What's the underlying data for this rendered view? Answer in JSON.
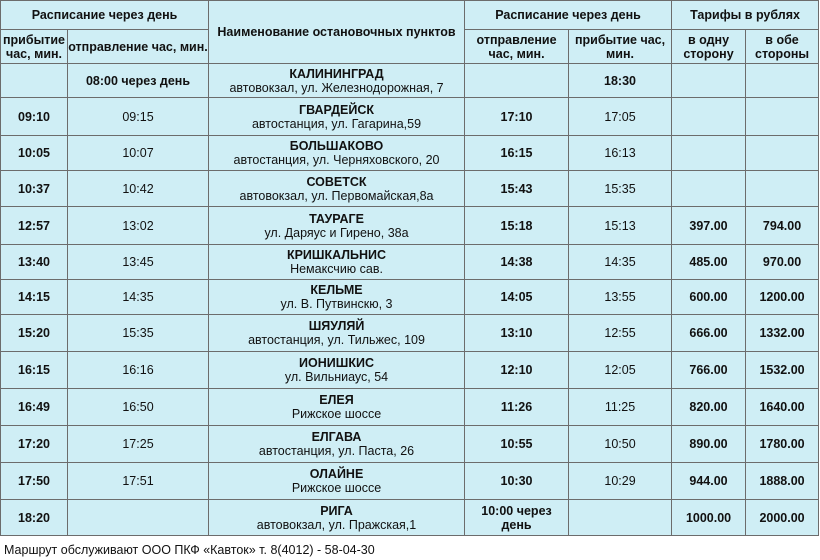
{
  "header": {
    "left_group": "Расписание через день",
    "left_arr": "прибытие час, мин.",
    "left_dep": "отправление час, мин.",
    "stops": "Наименование остановочных пунктов",
    "right_group": "Расписание через день",
    "right_dep": "отправление час, мин.",
    "right_arr": "прибытие час, мин.",
    "tariffs": "Тарифы в рублях",
    "one_way": "в одну сторону",
    "both_ways": "в обе стороны"
  },
  "rows": [
    {
      "l_arr": "",
      "l_dep": "08:00 через день",
      "name": "КАЛИНИНГРАД",
      "addr": "автовокзал, ул. Железнодорожная, 7",
      "r_dep": "",
      "r_arr": "18:30",
      "one": "",
      "both": ""
    },
    {
      "l_arr": "09:10",
      "l_dep": "09:15",
      "name": "ГВАРДЕЙСК",
      "addr": "автостанция, ул. Гагарина,59",
      "r_dep": "17:10",
      "r_arr": "17:05",
      "one": "",
      "both": ""
    },
    {
      "l_arr": "10:05",
      "l_dep": "10:07",
      "name": "БОЛЬШАКОВО",
      "addr": "автостанция, ул. Черняховского, 20",
      "r_dep": "16:15",
      "r_arr": "16:13",
      "one": "",
      "both": ""
    },
    {
      "l_arr": "10:37",
      "l_dep": "10:42",
      "name": "СОВЕТСК",
      "addr": "автовокзал, ул. Первомайская,8а",
      "r_dep": "15:43",
      "r_arr": "15:35",
      "one": "",
      "both": ""
    },
    {
      "l_arr": "12:57",
      "l_dep": "13:02",
      "name": "ТАУРАГЕ",
      "addr": "ул. Даряус и Гирено, 38а",
      "r_dep": "15:18",
      "r_arr": "15:13",
      "one": "397.00",
      "both": "794.00"
    },
    {
      "l_arr": "13:40",
      "l_dep": "13:45",
      "name": "КРИШКАЛЬНИС",
      "addr": "Немаксчию сав.",
      "r_dep": "14:38",
      "r_arr": "14:35",
      "one": "485.00",
      "both": "970.00"
    },
    {
      "l_arr": "14:15",
      "l_dep": "14:35",
      "name": "КЕЛЬМЕ",
      "addr": "ул. В. Путвинскю, 3",
      "r_dep": "14:05",
      "r_arr": "13:55",
      "one": "600.00",
      "both": "1200.00"
    },
    {
      "l_arr": "15:20",
      "l_dep": "15:35",
      "name": "ШЯУЛЯЙ",
      "addr": "автостанция, ул. Тильжес, 109",
      "r_dep": "13:10",
      "r_arr": "12:55",
      "one": "666.00",
      "both": "1332.00"
    },
    {
      "l_arr": "16:15",
      "l_dep": "16:16",
      "name": "ИОНИШКИС",
      "addr": "ул. Вильниаус, 54",
      "r_dep": "12:10",
      "r_arr": "12:05",
      "one": "766.00",
      "both": "1532.00"
    },
    {
      "l_arr": "16:49",
      "l_dep": "16:50",
      "name": "ЕЛЕЯ",
      "addr": "Рижское шоссе",
      "r_dep": "11:26",
      "r_arr": "11:25",
      "one": "820.00",
      "both": "1640.00"
    },
    {
      "l_arr": "17:20",
      "l_dep": "17:25",
      "name": "ЕЛГАВА",
      "addr": "автостанция, ул. Паста, 26",
      "r_dep": "10:55",
      "r_arr": "10:50",
      "one": "890.00",
      "both": "1780.00"
    },
    {
      "l_arr": "17:50",
      "l_dep": "17:51",
      "name": "ОЛАЙНЕ",
      "addr": "Рижское шоссе",
      "r_dep": "10:30",
      "r_arr": "10:29",
      "one": "944.00",
      "both": "1888.00"
    },
    {
      "l_arr": "18:20",
      "l_dep": "",
      "name": "РИГА",
      "addr": "автовокзал, ул. Пражская,1",
      "r_dep": "10:00 через день",
      "r_arr": "",
      "one": "1000.00",
      "both": "2000.00"
    }
  ],
  "footer": "Маршрут обслуживают ООО ПКФ «Кавток» т. 8(4012) - 58-04-30"
}
